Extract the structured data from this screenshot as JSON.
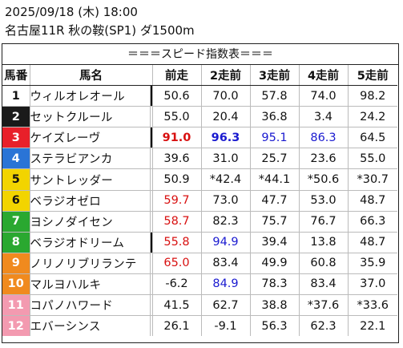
{
  "header": {
    "line1": "2025/09/18 (木) 18:00",
    "line2": "名古屋11R 秋の鞍(SP1) ダ1500m"
  },
  "table": {
    "banner": "＝＝＝スピード指数表＝＝＝",
    "columns": [
      "馬番",
      "馬名",
      "前走",
      "2走前",
      "3走前",
      "4走前",
      "5走前"
    ],
    "colors": {
      "frame_1": "#ffffff",
      "frame_2": "#1a1a1a",
      "frame_3": "#e8202a",
      "frame_4": "#2a74d6",
      "frame_5": "#f2d400",
      "frame_6": "#2aa830",
      "frame_7": "#f08a1e",
      "frame_8": "#f39ab0",
      "highlight_red": "#d81010",
      "highlight_blue": "#1a1ad0"
    },
    "rows": [
      {
        "num": "1",
        "name": "ウィルオレオール",
        "frame": 1,
        "mark": true,
        "vals": [
          {
            "v": "50.6"
          },
          {
            "v": "70.0"
          },
          {
            "v": "57.8"
          },
          {
            "v": "74.0"
          },
          {
            "v": "98.2"
          }
        ]
      },
      {
        "num": "2",
        "name": "セットクルール",
        "frame": 2,
        "mark": false,
        "vals": [
          {
            "v": "55.0"
          },
          {
            "v": "20.4"
          },
          {
            "v": "36.8"
          },
          {
            "v": "3.4"
          },
          {
            "v": "24.2"
          }
        ]
      },
      {
        "num": "3",
        "name": "ケイズレーヴ",
        "frame": 3,
        "mark": true,
        "vals": [
          {
            "v": "91.0",
            "c": "red",
            "b": true
          },
          {
            "v": "96.3",
            "c": "blue",
            "b": true
          },
          {
            "v": "95.1",
            "c": "blue"
          },
          {
            "v": "86.3",
            "c": "blue"
          },
          {
            "v": "64.5"
          }
        ]
      },
      {
        "num": "4",
        "name": "ステラビアンカ",
        "frame": 4,
        "mark": false,
        "vals": [
          {
            "v": "39.6"
          },
          {
            "v": "31.0"
          },
          {
            "v": "25.7"
          },
          {
            "v": "23.6"
          },
          {
            "v": "55.0"
          }
        ]
      },
      {
        "num": "5",
        "name": "サントレッダー",
        "frame": 5,
        "mark": false,
        "vals": [
          {
            "v": "50.9"
          },
          {
            "v": "*42.4"
          },
          {
            "v": "*44.1"
          },
          {
            "v": "*50.6"
          },
          {
            "v": "*30.7"
          }
        ]
      },
      {
        "num": "6",
        "name": "ベラジオゼロ",
        "frame": 5,
        "mark": false,
        "vals": [
          {
            "v": "59.7",
            "c": "red"
          },
          {
            "v": "73.0"
          },
          {
            "v": "47.7"
          },
          {
            "v": "53.0"
          },
          {
            "v": "48.7"
          }
        ]
      },
      {
        "num": "7",
        "name": "ヨシノダイセン",
        "frame": 6,
        "mark": false,
        "vals": [
          {
            "v": "58.7",
            "c": "red"
          },
          {
            "v": "82.3"
          },
          {
            "v": "75.7"
          },
          {
            "v": "76.7"
          },
          {
            "v": "66.3"
          }
        ]
      },
      {
        "num": "8",
        "name": "ベラジオドリーム",
        "frame": 6,
        "mark": true,
        "vals": [
          {
            "v": "55.8",
            "c": "red"
          },
          {
            "v": "94.9",
            "c": "blue"
          },
          {
            "v": "39.4"
          },
          {
            "v": "13.8"
          },
          {
            "v": "48.7"
          }
        ]
      },
      {
        "num": "9",
        "name": "ノリノリブリランテ",
        "frame": 7,
        "mark": false,
        "vals": [
          {
            "v": "65.0",
            "c": "red"
          },
          {
            "v": "83.4"
          },
          {
            "v": "49.9"
          },
          {
            "v": "60.8"
          },
          {
            "v": "35.9"
          }
        ]
      },
      {
        "num": "10",
        "name": "マルヨハルキ",
        "frame": 7,
        "mark": false,
        "vals": [
          {
            "v": "-6.2"
          },
          {
            "v": "84.9",
            "c": "blue"
          },
          {
            "v": "78.3"
          },
          {
            "v": "83.4"
          },
          {
            "v": "37.0"
          }
        ]
      },
      {
        "num": "11",
        "name": "コパノハワード",
        "frame": 8,
        "mark": false,
        "vals": [
          {
            "v": "41.5"
          },
          {
            "v": "62.7"
          },
          {
            "v": "38.8"
          },
          {
            "v": "*37.6"
          },
          {
            "v": "*33.6"
          }
        ]
      },
      {
        "num": "12",
        "name": "エバーシンス",
        "frame": 8,
        "mark": false,
        "vals": [
          {
            "v": "26.1"
          },
          {
            "v": "-9.1"
          },
          {
            "v": "56.3"
          },
          {
            "v": "62.3"
          },
          {
            "v": "22.1"
          }
        ]
      }
    ]
  }
}
